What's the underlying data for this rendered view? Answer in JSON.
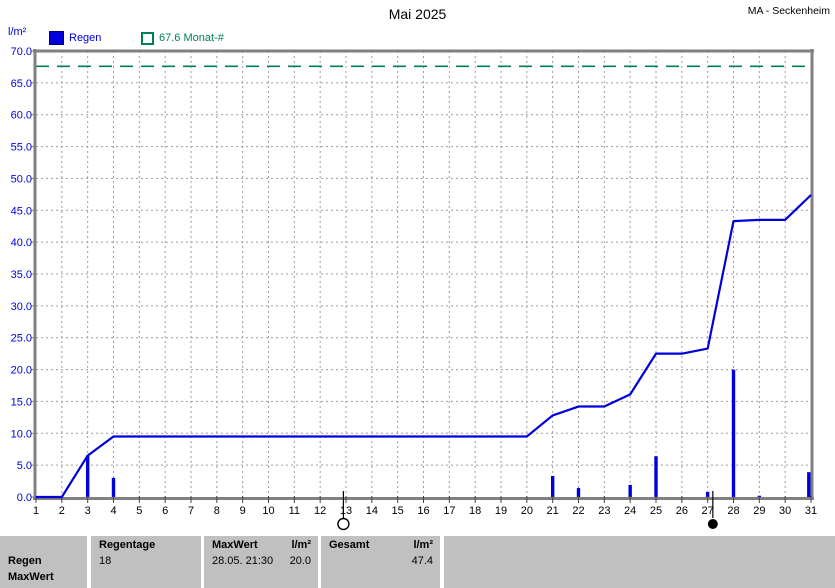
{
  "header": {
    "title": "Mai 2025",
    "station": "MA - Seckenheim"
  },
  "legend": {
    "unit_label": "l/m²",
    "rain_label": "Regen",
    "target_label": "67.6 Monat-#"
  },
  "colors": {
    "rain": "#0000dd",
    "target": "#008050",
    "grid": "#9c9c9c",
    "axis": "#808080",
    "moon": "#000000",
    "panel_bg": "#c0c0c0"
  },
  "chart_data": {
    "type": "line+bar",
    "title": "Mai 2025",
    "station": "MA - Seckenheim",
    "ylabel": "l/m²",
    "ylim": [
      0,
      70
    ],
    "yticks": [
      0,
      5,
      10,
      15,
      20,
      25,
      30,
      35,
      40,
      45,
      50,
      55,
      60,
      65,
      70
    ],
    "xlim": [
      1,
      31
    ],
    "xticks": [
      1,
      2,
      3,
      4,
      5,
      6,
      7,
      8,
      9,
      10,
      11,
      12,
      13,
      14,
      15,
      16,
      17,
      18,
      19,
      20,
      21,
      22,
      23,
      24,
      25,
      26,
      27,
      28,
      29,
      30,
      31
    ],
    "grid": true,
    "legend_position": "top",
    "series": [
      {
        "name": "Regen Tagesmenge",
        "type": "bar",
        "points": [
          {
            "day": 3,
            "value": 6.5
          },
          {
            "day": 4,
            "value": 3.0
          },
          {
            "day": 21,
            "value": 3.3
          },
          {
            "day": 22,
            "value": 1.4
          },
          {
            "day": 24,
            "value": 1.9
          },
          {
            "day": 25,
            "value": 6.4
          },
          {
            "day": 27,
            "value": 0.8
          },
          {
            "day": 28,
            "value": 20.0
          },
          {
            "day": 29,
            "value": 0.2
          },
          {
            "day": 31,
            "value": 3.9
          }
        ]
      },
      {
        "name": "Regen kumulierte Summe",
        "type": "line",
        "values": [
          0,
          0,
          6.5,
          9.5,
          9.5,
          9.5,
          9.5,
          9.5,
          9.5,
          9.5,
          9.5,
          9.5,
          9.5,
          9.5,
          9.5,
          9.5,
          9.5,
          9.5,
          9.5,
          9.5,
          12.8,
          14.2,
          14.2,
          16.1,
          22.5,
          22.5,
          23.3,
          43.3,
          43.5,
          43.5,
          47.4
        ]
      },
      {
        "name": "Monat-# Referenzlinie",
        "type": "hline",
        "value": 67.6,
        "label": "67.6 Monat-#"
      }
    ],
    "moon_markers": [
      {
        "day": 12.9,
        "phase": "Vollmond",
        "symbol": "open-circle"
      },
      {
        "day": 27.2,
        "phase": "Neumond",
        "symbol": "filled-circle"
      }
    ]
  },
  "summary_panel": {
    "row_label_1": "Regen",
    "row_label_2": "MaxWert",
    "regentage_header": "Regentage",
    "regentage_value": "18",
    "maxwert_header": "MaxWert",
    "maxwert_unit": "l/m²",
    "maxwert_datetime": "28.05. 21:30",
    "maxwert_value": "20.0",
    "gesamt_header": "Gesamt",
    "gesamt_unit": "l/m²",
    "gesamt_value": "47.4"
  }
}
